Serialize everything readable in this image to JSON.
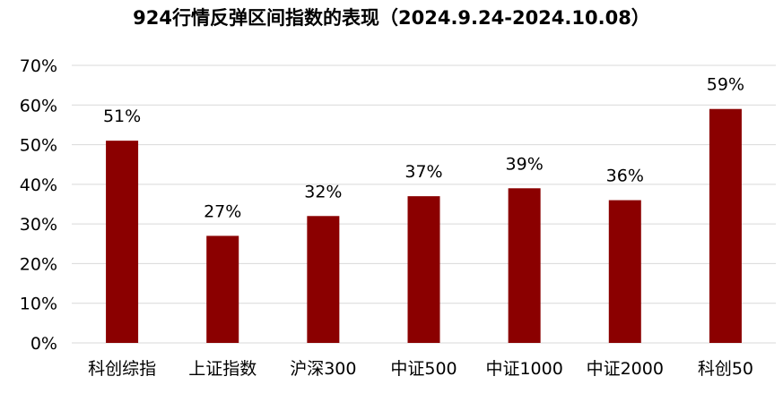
{
  "chart_data": {
    "type": "bar",
    "title": "924行情反弹区间指数的表现（2024.9.24-2024.10.08）",
    "xlabel": "",
    "ylabel": "",
    "categories": [
      "科创综指",
      "上证指数",
      "沪深300",
      "中证500",
      "中证1000",
      "中证2000",
      "科创50"
    ],
    "values": [
      51,
      27,
      32,
      37,
      39,
      36,
      59
    ],
    "data_labels": [
      "51%",
      "27%",
      "32%",
      "37%",
      "39%",
      "36%",
      "59%"
    ],
    "y_ticks": [
      0,
      10,
      20,
      30,
      40,
      50,
      60,
      70
    ],
    "y_tick_labels": [
      "0%",
      "10%",
      "20%",
      "30%",
      "40%",
      "50%",
      "60%",
      "70%"
    ],
    "ylim": [
      0,
      70
    ],
    "grid": true,
    "legend": "none",
    "bar_color": "#8B0000",
    "grid_color": "#D9D9D9"
  }
}
